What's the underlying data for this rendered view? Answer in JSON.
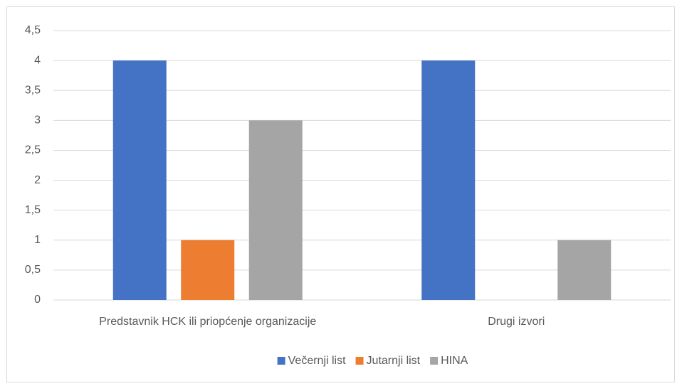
{
  "chart_data": {
    "type": "bar",
    "categories": [
      "Predstavnik HCK ili priopćenje organizacije",
      "Drugi izvori"
    ],
    "series": [
      {
        "name": "Večernji list",
        "color": "#4472c4",
        "values": [
          4,
          4
        ]
      },
      {
        "name": "Jutarnji list",
        "color": "#ed7d31",
        "values": [
          1,
          0
        ]
      },
      {
        "name": "HINA",
        "color": "#a5a5a5",
        "values": [
          3,
          1
        ]
      }
    ],
    "ylim": [
      0,
      4.5
    ],
    "yticks": [
      0,
      {
        "value": 0.5,
        "label": "0,5"
      },
      1,
      {
        "value": 1.5,
        "label": "1,5"
      },
      2,
      {
        "value": 2.5,
        "label": "2,5"
      },
      3,
      {
        "value": 3.5,
        "label": "3,5"
      },
      4,
      {
        "value": 4.5,
        "label": "4,5"
      }
    ],
    "grid": true,
    "legend": "bottom"
  }
}
